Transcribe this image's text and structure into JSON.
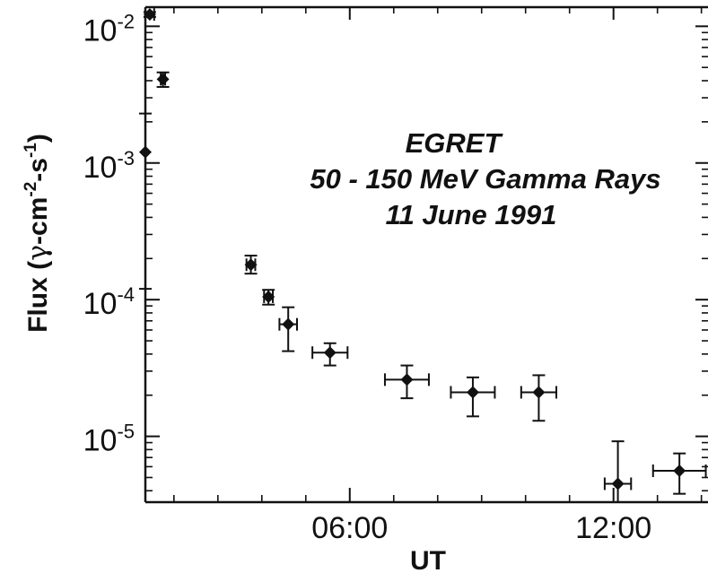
{
  "chart_data": {
    "type": "scatter",
    "title": "",
    "annotation_lines": [
      "EGRET",
      "50 - 150 MeV Gamma Rays",
      "11 June 1991"
    ],
    "xlabel": "UT",
    "ylabel_parts": {
      "prefix": "Flux (",
      "gamma": "γ",
      "cm": "-cm",
      "cm_exp": "-2",
      "s": "-s",
      "s_exp": "-1",
      "suffix": ")"
    },
    "y_scale": "log",
    "x_unit": "hours UT",
    "xlim": [
      1.35,
      14.15
    ],
    "ylim": [
      3.3e-06,
      0.0138
    ],
    "x_ticks": [
      {
        "value": 6,
        "label": "06:00"
      },
      {
        "value": 12,
        "label": "12:00"
      }
    ],
    "y_ticks": [
      {
        "value": 1e-05,
        "base": "10",
        "exp": "-5"
      },
      {
        "value": 0.0001,
        "base": "10",
        "exp": "-4"
      },
      {
        "value": 0.001,
        "base": "10",
        "exp": "-3"
      },
      {
        "value": 0.01,
        "base": "10",
        "exp": "-2"
      }
    ],
    "grid": false,
    "series": [
      {
        "color": "#111111",
        "points": [
          {
            "x": 1.35,
            "y": 0.0012,
            "y_err_low": 0.00012,
            "y_err_high": 0.0023,
            "x_err": 0.0
          },
          {
            "x": 1.45,
            "y": 0.0122,
            "y_err_low": 0.0117,
            "y_err_high": 0.0127,
            "x_err": 0.1
          },
          {
            "x": 1.75,
            "y": 0.0041,
            "y_err_low": 0.0036,
            "y_err_high": 0.0046,
            "x_err": 0.05
          },
          {
            "x": 3.75,
            "y": 0.00018,
            "y_err_low": 0.000155,
            "y_err_high": 0.00021,
            "x_err": 0.1
          },
          {
            "x": 4.15,
            "y": 0.000105,
            "y_err_low": 9.2e-05,
            "y_err_high": 0.000118,
            "x_err": 0.1
          },
          {
            "x": 4.6,
            "y": 6.6e-05,
            "y_err_low": 4.2e-05,
            "y_err_high": 8.8e-05,
            "x_err": 0.2
          },
          {
            "x": 5.55,
            "y": 4.1e-05,
            "y_err_low": 3.3e-05,
            "y_err_high": 4.8e-05,
            "x_err": 0.4
          },
          {
            "x": 7.3,
            "y": 2.6e-05,
            "y_err_low": 1.9e-05,
            "y_err_high": 3.3e-05,
            "x_err": 0.5
          },
          {
            "x": 8.8,
            "y": 2.1e-05,
            "y_err_low": 1.4e-05,
            "y_err_high": 2.7e-05,
            "x_err": 0.5
          },
          {
            "x": 10.3,
            "y": 2.1e-05,
            "y_err_low": 1.3e-05,
            "y_err_high": 2.8e-05,
            "x_err": 0.4
          },
          {
            "x": 12.1,
            "y": 4.5e-06,
            "y_err_low": 3.3e-06,
            "y_err_high": 9.2e-06,
            "x_err": 0.3
          },
          {
            "x": 13.5,
            "y": 5.6e-06,
            "y_err_low": 3.8e-06,
            "y_err_high": 7.5e-06,
            "x_err": 0.6
          }
        ]
      }
    ]
  }
}
